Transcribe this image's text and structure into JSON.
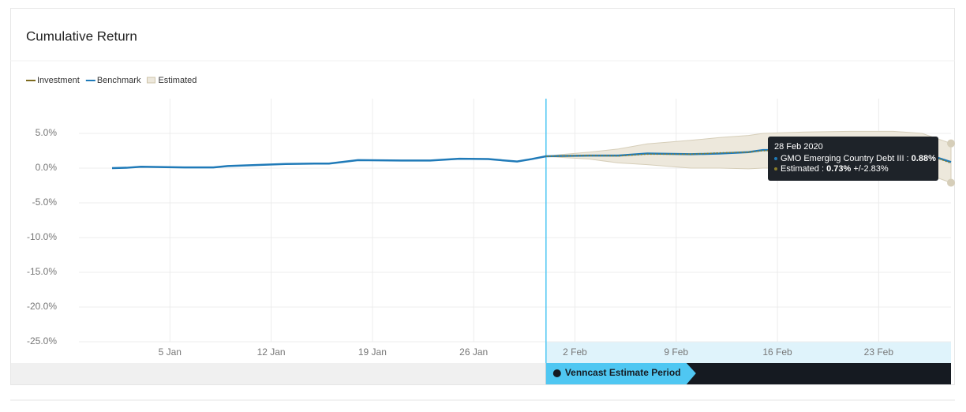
{
  "chart_data": {
    "type": "line",
    "title": "Cumulative Return",
    "x": [
      "2020-01-01",
      "2020-01-02",
      "2020-01-03",
      "2020-01-06",
      "2020-01-08",
      "2020-01-09",
      "2020-01-13",
      "2020-01-15",
      "2020-01-16",
      "2020-01-18",
      "2020-01-21",
      "2020-01-23",
      "2020-01-25",
      "2020-01-27",
      "2020-01-29",
      "2020-01-30",
      "2020-01-31",
      "2020-02-01",
      "2020-02-03",
      "2020-02-05",
      "2020-02-07",
      "2020-02-10",
      "2020-02-12",
      "2020-02-14",
      "2020-02-15",
      "2020-02-18",
      "2020-02-21",
      "2020-02-24",
      "2020-02-26",
      "2020-02-28"
    ],
    "series": [
      {
        "name": "Investment",
        "color": "#7d6b1e",
        "values": [
          null,
          null,
          null,
          null,
          null,
          null,
          null,
          null,
          null,
          null,
          null,
          null,
          null,
          null,
          null,
          null,
          null,
          null,
          null,
          null,
          null,
          null,
          null,
          null,
          null,
          null,
          null,
          null,
          null,
          null
        ]
      },
      {
        "name": "Benchmark",
        "color": "#1f7ab8",
        "values": [
          0.0,
          0.05,
          0.2,
          0.1,
          0.1,
          0.3,
          0.6,
          0.65,
          0.65,
          1.15,
          1.1,
          1.1,
          1.35,
          1.3,
          0.95,
          1.3,
          1.7,
          1.75,
          1.8,
          1.8,
          2.1,
          2.0,
          2.1,
          2.3,
          2.6,
          2.6,
          2.6,
          2.5,
          2.2,
          0.88
        ]
      },
      {
        "name": "Estimated",
        "color": "#8a7d2a",
        "band_color": "#ede8dc",
        "values": [
          null,
          null,
          null,
          null,
          null,
          null,
          null,
          null,
          null,
          null,
          null,
          null,
          null,
          null,
          null,
          null,
          1.7,
          1.75,
          1.8,
          1.75,
          2.0,
          2.0,
          2.2,
          2.3,
          2.5,
          2.6,
          2.6,
          2.5,
          2.2,
          0.73
        ],
        "errors": [
          null,
          null,
          null,
          null,
          null,
          null,
          null,
          null,
          null,
          null,
          null,
          null,
          null,
          null,
          null,
          null,
          0,
          0.2,
          0.5,
          1.0,
          1.5,
          2.0,
          2.2,
          2.4,
          2.5,
          2.6,
          2.7,
          2.8,
          2.8,
          2.83
        ]
      }
    ],
    "xlim": [
      "2020-01-01",
      "2020-02-28"
    ],
    "xticks": [
      {
        "value": "2020-01-05",
        "label": "5 Jan"
      },
      {
        "value": "2020-01-12",
        "label": "12 Jan"
      },
      {
        "value": "2020-01-19",
        "label": "19 Jan"
      },
      {
        "value": "2020-01-26",
        "label": "26 Jan"
      },
      {
        "value": "2020-02-02",
        "label": "2 Feb"
      },
      {
        "value": "2020-02-09",
        "label": "9 Feb"
      },
      {
        "value": "2020-02-16",
        "label": "16 Feb"
      },
      {
        "value": "2020-02-23",
        "label": "23 Feb"
      }
    ],
    "ylim": [
      -25,
      10
    ],
    "yticks": [
      {
        "value": 5,
        "label": "5.0%"
      },
      {
        "value": 0,
        "label": "0.0%"
      },
      {
        "value": -5,
        "label": "-5.0%"
      },
      {
        "value": -10,
        "label": "-10.0%"
      },
      {
        "value": -15,
        "label": "-15.0%"
      },
      {
        "value": -20,
        "label": "-20.0%"
      },
      {
        "value": -25,
        "label": "-25.0%"
      }
    ],
    "grid": true,
    "banner": "Venncast Estimate Period",
    "tooltip": {
      "date": "28 Feb 2020",
      "rows": [
        {
          "label": "GMO Emerging Country Debt III : ",
          "value": "0.88%",
          "extra": ""
        },
        {
          "label": "Estimated : ",
          "value": "0.73%",
          "extra": " +/-2.83%"
        }
      ]
    }
  }
}
